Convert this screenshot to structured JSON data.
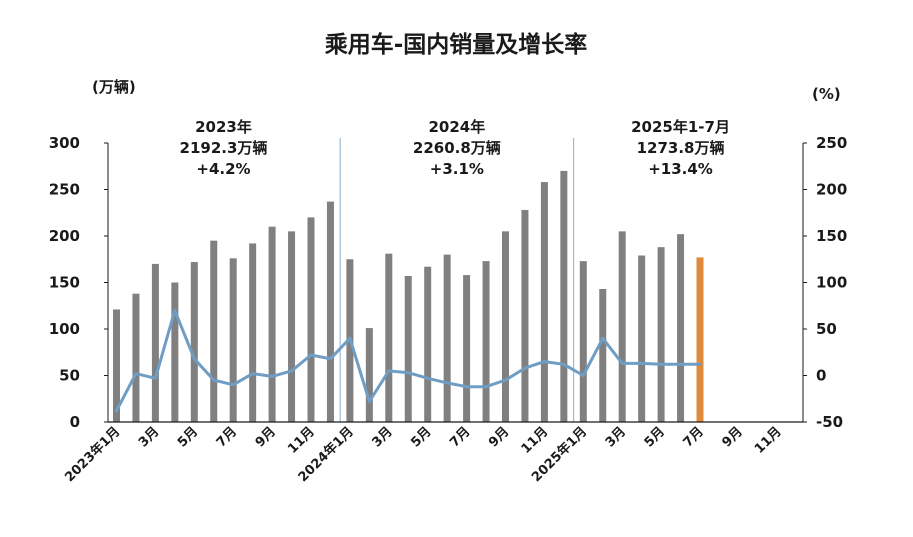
{
  "chart_data": {
    "type": "bar",
    "title": "乘用车-国内销量及增长率",
    "left_unit": "(万辆)",
    "right_unit": "(%)",
    "left_axis": {
      "min": 0,
      "max": 300,
      "ticks": [
        "0",
        "50",
        "100",
        "150",
        "200",
        "250",
        "300"
      ]
    },
    "right_axis": {
      "min": -50,
      "max": 250,
      "ticks": [
        "-50",
        "0",
        "50",
        "100",
        "150",
        "200",
        "250"
      ]
    },
    "x_tick_labels": [
      {
        "i": 0,
        "label": "2023年1月"
      },
      {
        "i": 2,
        "label": "3月"
      },
      {
        "i": 4,
        "label": "5月"
      },
      {
        "i": 6,
        "label": "7月"
      },
      {
        "i": 8,
        "label": "9月"
      },
      {
        "i": 10,
        "label": "11月"
      },
      {
        "i": 12,
        "label": "2024年1月"
      },
      {
        "i": 14,
        "label": "3月"
      },
      {
        "i": 16,
        "label": "5月"
      },
      {
        "i": 18,
        "label": "7月"
      },
      {
        "i": 20,
        "label": "9月"
      },
      {
        "i": 22,
        "label": "11月"
      },
      {
        "i": 24,
        "label": "2025年1月"
      },
      {
        "i": 26,
        "label": "3月"
      },
      {
        "i": 28,
        "label": "5月"
      },
      {
        "i": 30,
        "label": "7月"
      },
      {
        "i": 32,
        "label": "9月"
      },
      {
        "i": 34,
        "label": "11月"
      }
    ],
    "series": [
      {
        "kind": "bar",
        "axis": "left",
        "color": "#808080",
        "highlight_color": "#E08A3C",
        "highlight_index": 30,
        "values": [
          121,
          138,
          170,
          150,
          172,
          195,
          176,
          192,
          210,
          205,
          220,
          237,
          175,
          101,
          181,
          157,
          167,
          180,
          158,
          173,
          205,
          228,
          258,
          270,
          173,
          143,
          205,
          179,
          188,
          202,
          177
        ]
      },
      {
        "kind": "line",
        "axis": "right",
        "color": "#6F9DC4",
        "values": [
          -38,
          2,
          -3,
          70,
          18,
          -5,
          -10,
          2,
          -1,
          5,
          22,
          18,
          40,
          -28,
          5,
          3,
          -3,
          -8,
          -12,
          -12,
          -5,
          8,
          15,
          12,
          0,
          40,
          13,
          13,
          12,
          12,
          12
        ]
      }
    ],
    "period_dividers": [
      11.5,
      23.5
    ],
    "annotations": [
      {
        "lines": [
          "2023年",
          "2192.3万辆",
          "+4.2%"
        ],
        "center": 5.5
      },
      {
        "lines": [
          "2024年",
          "2260.8万辆",
          "+3.1%"
        ],
        "center": 17.5
      },
      {
        "lines": [
          "2025年1-7月",
          "1273.8万辆",
          "+13.4%"
        ],
        "center": 29
      }
    ]
  }
}
